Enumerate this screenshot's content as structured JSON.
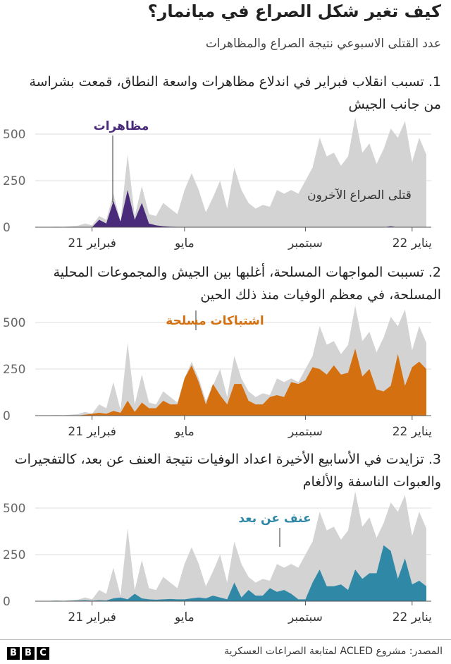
{
  "title": "كيف تغير شكل الصراع في ميانمار؟",
  "subtitle": "عدد القتلى الاسبوعي نتيجة الصراع والمظاهرات",
  "source": "المصدر: مشروع ACLED لمتابعة الصراعات العسكرية",
  "logo": [
    "B",
    "B",
    "C"
  ],
  "chart_data": [
    {
      "type": "area",
      "title": "1. تسبب انقلاب فبراير في اندلاع مظاهرات واسعة النطاق، قمعت بشراسة من جانب الجيش",
      "annotation": "مظاهرات",
      "categories": [
        null,
        null,
        null,
        null,
        null,
        null,
        null,
        "21 فبراير",
        null,
        null,
        null,
        null,
        null,
        null,
        null,
        null,
        null,
        null,
        null,
        null,
        "مايو",
        null,
        null,
        null,
        null,
        null,
        null,
        null,
        null,
        null,
        null,
        null,
        null,
        null,
        null,
        null,
        null,
        "سبتمبر",
        null,
        null,
        null,
        null,
        null,
        null,
        null,
        null,
        null,
        null,
        null,
        null,
        null,
        null,
        "22 يناير",
        null,
        null
      ],
      "ylim": [
        0,
        600
      ],
      "yticks": [
        0,
        250,
        500
      ],
      "series": [
        {
          "name": "قتلى الصراع الآخرون",
          "color": "#d3d3d3",
          "values": [
            0,
            2,
            3,
            2,
            5,
            8,
            20,
            10,
            60,
            40,
            180,
            30,
            390,
            60,
            220,
            70,
            60,
            130,
            100,
            70,
            200,
            290,
            200,
            80,
            160,
            250,
            100,
            320,
            200,
            130,
            100,
            120,
            110,
            200,
            180,
            200,
            180,
            250,
            320,
            480,
            380,
            400,
            330,
            380,
            590,
            400,
            450,
            340,
            420,
            530,
            480,
            570,
            350,
            480,
            390
          ]
        },
        {
          "name": "مظاهرات",
          "color": "#4a2a7a",
          "values": [
            0,
            0,
            0,
            0,
            0,
            0,
            0,
            0,
            40,
            20,
            140,
            30,
            200,
            40,
            130,
            20,
            10,
            5,
            3,
            2,
            0,
            0,
            0,
            0,
            0,
            0,
            0,
            0,
            0,
            0,
            0,
            0,
            0,
            0,
            0,
            0,
            0,
            0,
            0,
            0,
            0,
            0,
            0,
            0,
            0,
            0,
            0,
            0,
            0,
            5,
            0,
            0,
            0,
            0,
            0
          ]
        }
      ]
    },
    {
      "type": "area",
      "title": "2. تسببت المواجهات المسلحة، أغلبها بين الجيش والمجموعات المحلية المسلحة، في معظم الوفيات منذ ذلك الحين",
      "annotation": "اشتباكات مسلحة",
      "categories": [
        null,
        null,
        null,
        null,
        null,
        null,
        null,
        "21 فبراير",
        null,
        null,
        null,
        null,
        null,
        null,
        null,
        null,
        null,
        null,
        null,
        null,
        "مايو",
        null,
        null,
        null,
        null,
        null,
        null,
        null,
        null,
        null,
        null,
        null,
        null,
        null,
        null,
        null,
        null,
        "سبتمبر",
        null,
        null,
        null,
        null,
        null,
        null,
        null,
        null,
        null,
        null,
        null,
        null,
        null,
        null,
        "22 يناير",
        null,
        null
      ],
      "ylim": [
        0,
        600
      ],
      "yticks": [
        0,
        250,
        500
      ],
      "series": [
        {
          "color": "#d3d3d3",
          "values": [
            0,
            2,
            3,
            2,
            5,
            8,
            20,
            10,
            60,
            40,
            180,
            30,
            390,
            60,
            220,
            70,
            60,
            130,
            100,
            70,
            200,
            290,
            200,
            80,
            160,
            250,
            100,
            320,
            200,
            130,
            100,
            120,
            110,
            200,
            180,
            200,
            180,
            250,
            320,
            480,
            380,
            400,
            330,
            380,
            590,
            400,
            450,
            340,
            420,
            530,
            480,
            570,
            350,
            480,
            390
          ]
        },
        {
          "name": "اشتباكات مسلحة",
          "color": "#d4700f",
          "values": [
            0,
            0,
            0,
            0,
            0,
            0,
            5,
            10,
            15,
            10,
            25,
            15,
            80,
            20,
            70,
            40,
            40,
            80,
            60,
            60,
            200,
            270,
            180,
            60,
            170,
            110,
            60,
            170,
            170,
            80,
            60,
            60,
            100,
            110,
            100,
            180,
            170,
            190,
            260,
            250,
            220,
            270,
            220,
            230,
            360,
            210,
            250,
            140,
            130,
            160,
            330,
            160,
            260,
            290,
            250
          ]
        }
      ]
    },
    {
      "type": "area",
      "title": "3. تزايدت في الأسابيع الأخيرة اعداد الوفيات نتيجة العنف عن بعد، كالتفجيرات والعبوات الناسفة والألغام",
      "annotation": "عنف عن بعد",
      "categories": [
        null,
        null,
        null,
        null,
        null,
        null,
        null,
        "21 فبراير",
        null,
        null,
        null,
        null,
        null,
        null,
        null,
        null,
        null,
        null,
        null,
        null,
        "مايو",
        null,
        null,
        null,
        null,
        null,
        null,
        null,
        null,
        null,
        null,
        null,
        null,
        null,
        null,
        null,
        null,
        "سبتمبر",
        null,
        null,
        null,
        null,
        null,
        null,
        null,
        null,
        null,
        null,
        null,
        null,
        null,
        null,
        "22 يناير",
        null,
        null
      ],
      "ylim": [
        0,
        600
      ],
      "yticks": [
        0,
        250,
        500
      ],
      "series": [
        {
          "color": "#d3d3d3",
          "values": [
            0,
            2,
            3,
            2,
            5,
            8,
            20,
            10,
            60,
            40,
            180,
            30,
            390,
            60,
            220,
            70,
            60,
            130,
            100,
            70,
            200,
            290,
            200,
            80,
            160,
            250,
            100,
            320,
            200,
            130,
            100,
            120,
            110,
            200,
            180,
            200,
            180,
            250,
            320,
            480,
            380,
            400,
            330,
            380,
            590,
            400,
            450,
            340,
            420,
            530,
            480,
            570,
            350,
            480,
            390
          ]
        },
        {
          "name": "عنف عن بعد",
          "color": "#2e88a6",
          "values": [
            0,
            2,
            3,
            2,
            3,
            4,
            5,
            3,
            5,
            4,
            15,
            20,
            10,
            40,
            15,
            10,
            8,
            10,
            12,
            10,
            10,
            15,
            20,
            15,
            30,
            20,
            10,
            100,
            20,
            60,
            30,
            30,
            70,
            50,
            60,
            40,
            10,
            10,
            100,
            170,
            80,
            80,
            90,
            60,
            170,
            120,
            150,
            150,
            300,
            270,
            120,
            230,
            90,
            110,
            80
          ]
        }
      ]
    }
  ]
}
